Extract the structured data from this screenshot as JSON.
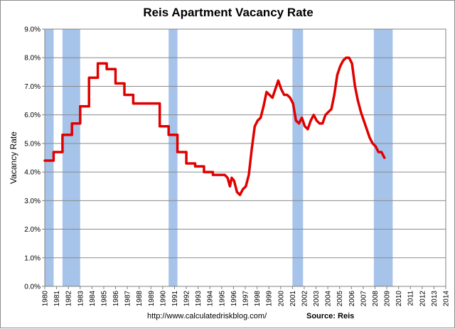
{
  "chart_data": {
    "type": "line",
    "title": "Reis Apartment Vacancy Rate",
    "xlabel": "",
    "ylabel": "Vacancy Rate",
    "ylim": [
      0,
      9
    ],
    "xlim": [
      1980,
      2014
    ],
    "y_tick_labels": [
      "0.0%",
      "1.0%",
      "2.0%",
      "3.0%",
      "4.0%",
      "5.0%",
      "6.0%",
      "7.0%",
      "8.0%",
      "9.0%"
    ],
    "x_tick_labels": [
      "1980",
      "1981",
      "1982",
      "1983",
      "1984",
      "1985",
      "1986",
      "1987",
      "1988",
      "1989",
      "1990",
      "1991",
      "1992",
      "1993",
      "1994",
      "1995",
      "1996",
      "1997",
      "1998",
      "1999",
      "2000",
      "2001",
      "2002",
      "2003",
      "2004",
      "2005",
      "2006",
      "2007",
      "2008",
      "2009",
      "2010",
      "2011",
      "2012",
      "2013",
      "2014"
    ],
    "grid": true,
    "line_color": "#e00000",
    "recession_color": "#a6c3ea",
    "recessions": [
      [
        1980.0,
        1980.75
      ],
      [
        1981.5,
        1983.0
      ],
      [
        1990.5,
        1991.25
      ],
      [
        2001.0,
        2001.9
      ],
      [
        2007.9,
        2009.5
      ]
    ],
    "series": [
      {
        "points": [
          [
            1980.0,
            4.4
          ],
          [
            1980.75,
            4.4
          ],
          [
            1980.75,
            4.7
          ],
          [
            1981.5,
            4.7
          ],
          [
            1981.5,
            5.3
          ],
          [
            1982.3,
            5.3
          ],
          [
            1982.3,
            5.7
          ],
          [
            1983.0,
            5.7
          ],
          [
            1983.0,
            6.3
          ],
          [
            1983.75,
            6.3
          ],
          [
            1983.75,
            7.3
          ],
          [
            1984.5,
            7.3
          ],
          [
            1984.5,
            7.8
          ],
          [
            1985.25,
            7.8
          ],
          [
            1985.25,
            7.6
          ],
          [
            1986.0,
            7.6
          ],
          [
            1986.0,
            7.1
          ],
          [
            1986.75,
            7.1
          ],
          [
            1986.75,
            6.7
          ],
          [
            1987.5,
            6.7
          ],
          [
            1987.5,
            6.4
          ],
          [
            1989.75,
            6.4
          ],
          [
            1989.75,
            5.6
          ],
          [
            1990.5,
            5.6
          ],
          [
            1990.5,
            5.3
          ],
          [
            1991.25,
            5.3
          ],
          [
            1991.25,
            4.7
          ],
          [
            1992.0,
            4.7
          ],
          [
            1992.0,
            4.3
          ],
          [
            1992.75,
            4.3
          ],
          [
            1992.75,
            4.2
          ],
          [
            1993.5,
            4.2
          ],
          [
            1993.5,
            4.0
          ],
          [
            1994.25,
            4.0
          ],
          [
            1994.25,
            3.9
          ],
          [
            1995.25,
            3.9
          ],
          [
            1995.5,
            3.8
          ],
          [
            1995.7,
            3.5
          ],
          [
            1995.85,
            3.8
          ],
          [
            1996.05,
            3.7
          ],
          [
            1996.3,
            3.3
          ],
          [
            1996.55,
            3.2
          ],
          [
            1996.8,
            3.4
          ],
          [
            1997.05,
            3.5
          ],
          [
            1997.3,
            3.9
          ],
          [
            1997.55,
            4.8
          ],
          [
            1997.8,
            5.6
          ],
          [
            1998.05,
            5.8
          ],
          [
            1998.3,
            5.9
          ],
          [
            1998.55,
            6.3
          ],
          [
            1998.8,
            6.8
          ],
          [
            1999.05,
            6.7
          ],
          [
            1999.3,
            6.6
          ],
          [
            1999.55,
            6.9
          ],
          [
            1999.8,
            7.2
          ],
          [
            2000.05,
            6.9
          ],
          [
            2000.3,
            6.7
          ],
          [
            2000.55,
            6.7
          ],
          [
            2000.8,
            6.6
          ],
          [
            2001.05,
            6.4
          ],
          [
            2001.3,
            5.8
          ],
          [
            2001.55,
            5.7
          ],
          [
            2001.8,
            5.9
          ],
          [
            2002.05,
            5.6
          ],
          [
            2002.3,
            5.5
          ],
          [
            2002.55,
            5.8
          ],
          [
            2002.8,
            6.0
          ],
          [
            2003.05,
            5.8
          ],
          [
            2003.3,
            5.7
          ],
          [
            2003.55,
            5.7
          ],
          [
            2003.8,
            6.0
          ],
          [
            2004.05,
            6.1
          ],
          [
            2004.3,
            6.2
          ],
          [
            2004.55,
            6.7
          ],
          [
            2004.8,
            7.4
          ],
          [
            2005.05,
            7.7
          ],
          [
            2005.3,
            7.9
          ],
          [
            2005.55,
            8.0
          ],
          [
            2005.8,
            8.0
          ],
          [
            2006.05,
            7.8
          ],
          [
            2006.3,
            7.0
          ],
          [
            2006.55,
            6.5
          ],
          [
            2006.8,
            6.1
          ],
          [
            2007.05,
            5.8
          ],
          [
            2007.3,
            5.5
          ],
          [
            2007.55,
            5.2
          ],
          [
            2007.8,
            5.0
          ],
          [
            2008.05,
            4.9
          ],
          [
            2008.3,
            4.7
          ],
          [
            2008.55,
            4.7
          ],
          [
            2008.8,
            4.5
          ]
        ]
      }
    ]
  },
  "footer": {
    "url": "http://www.calculatedriskblog.com/",
    "source": "Source: Reis"
  }
}
